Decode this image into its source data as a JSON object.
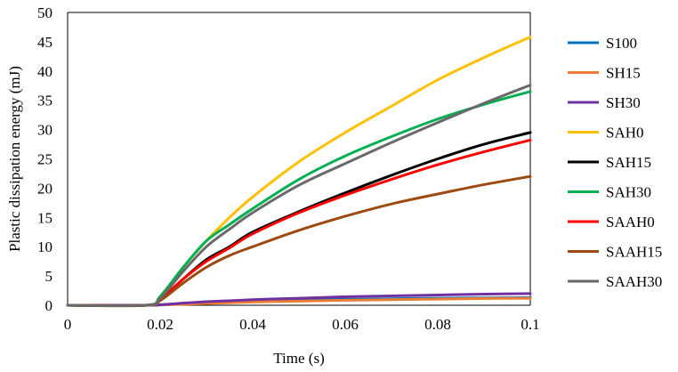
{
  "chart_data": {
    "type": "line",
    "title": "",
    "xlabel": "Time (s)",
    "ylabel": "Plastic dissipation energy (mJ)",
    "xlim": [
      0,
      0.1
    ],
    "ylim": [
      0,
      50
    ],
    "xticks": [
      0,
      0.02,
      0.04,
      0.06,
      0.08,
      0.1
    ],
    "xtick_labels": [
      "0",
      "0.02",
      "0.04",
      "0.06",
      "0.08",
      "0.1"
    ],
    "yticks": [
      0,
      5,
      10,
      15,
      20,
      25,
      30,
      35,
      40,
      45,
      50
    ],
    "ytick_labels": [
      "0",
      "5",
      "10",
      "15",
      "20",
      "25",
      "30",
      "35",
      "40",
      "45",
      "50"
    ],
    "grid": false,
    "legend_position": "right",
    "series": [
      {
        "name": "S100",
        "color": "#0070C0",
        "x": [
          0,
          0.017,
          0.02,
          0.03,
          0.04,
          0.05,
          0.06,
          0.07,
          0.08,
          0.09,
          0.1
        ],
        "y": [
          0,
          0,
          0.05,
          0.4,
          0.7,
          0.9,
          1.0,
          1.1,
          1.2,
          1.25,
          1.3
        ]
      },
      {
        "name": "SH15",
        "color": "#ED7D31",
        "x": [
          0,
          0.017,
          0.02,
          0.03,
          0.04,
          0.05,
          0.06,
          0.07,
          0.08,
          0.09,
          0.1
        ],
        "y": [
          0,
          0,
          0.05,
          0.3,
          0.55,
          0.7,
          0.85,
          0.95,
          1.05,
          1.15,
          1.2
        ]
      },
      {
        "name": "SH30",
        "color": "#7030A0",
        "x": [
          0,
          0.017,
          0.02,
          0.03,
          0.04,
          0.05,
          0.06,
          0.07,
          0.08,
          0.09,
          0.1
        ],
        "y": [
          0,
          0,
          0.1,
          0.6,
          0.95,
          1.2,
          1.45,
          1.6,
          1.75,
          1.9,
          2.0
        ]
      },
      {
        "name": "SAH0",
        "color": "#FFC000",
        "x": [
          0,
          0.017,
          0.02,
          0.025,
          0.03,
          0.035,
          0.04,
          0.05,
          0.06,
          0.07,
          0.08,
          0.09,
          0.1
        ],
        "y": [
          0,
          0,
          1.5,
          6.5,
          11.0,
          15.0,
          18.5,
          24.5,
          29.5,
          34.0,
          38.5,
          42.3,
          45.8
        ]
      },
      {
        "name": "SAH15",
        "color": "#000000",
        "x": [
          0,
          0.017,
          0.02,
          0.025,
          0.03,
          0.035,
          0.04,
          0.05,
          0.06,
          0.07,
          0.08,
          0.09,
          0.1
        ],
        "y": [
          0,
          0,
          1.0,
          4.5,
          7.8,
          10.0,
          12.5,
          16.0,
          19.2,
          22.2,
          25.0,
          27.5,
          29.5
        ]
      },
      {
        "name": "SAH30",
        "color": "#00B050",
        "x": [
          0,
          0.017,
          0.02,
          0.025,
          0.03,
          0.035,
          0.04,
          0.05,
          0.06,
          0.07,
          0.08,
          0.09,
          0.1
        ],
        "y": [
          0,
          0,
          1.5,
          6.5,
          11.0,
          13.8,
          16.5,
          21.5,
          25.5,
          28.8,
          31.8,
          34.3,
          36.5
        ]
      },
      {
        "name": "SAAH0",
        "color": "#FF0000",
        "x": [
          0,
          0.017,
          0.02,
          0.025,
          0.03,
          0.035,
          0.04,
          0.05,
          0.06,
          0.07,
          0.08,
          0.09,
          0.1
        ],
        "y": [
          0,
          0,
          1.0,
          4.5,
          7.5,
          9.8,
          12.2,
          15.8,
          18.8,
          21.5,
          24.0,
          26.2,
          28.2
        ]
      },
      {
        "name": "SAAH15",
        "color": "#9C4A10",
        "x": [
          0,
          0.017,
          0.02,
          0.025,
          0.03,
          0.035,
          0.04,
          0.05,
          0.06,
          0.07,
          0.08,
          0.09,
          0.1
        ],
        "y": [
          0,
          0,
          0.8,
          3.8,
          6.5,
          8.5,
          10.0,
          12.8,
          15.2,
          17.3,
          19.0,
          20.6,
          22.0
        ]
      },
      {
        "name": "SAAH30",
        "color": "#696969",
        "x": [
          0,
          0.017,
          0.02,
          0.025,
          0.03,
          0.035,
          0.04,
          0.05,
          0.06,
          0.07,
          0.08,
          0.09,
          0.1
        ],
        "y": [
          0,
          0,
          1.2,
          5.8,
          10.0,
          13.0,
          15.8,
          20.5,
          24.2,
          27.8,
          31.2,
          34.5,
          37.6
        ]
      }
    ]
  }
}
